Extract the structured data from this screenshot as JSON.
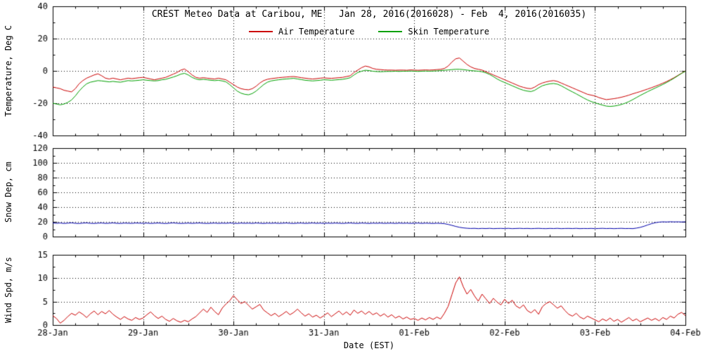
{
  "title": "CREST Meteo Data at Caribou, ME   Jan 28, 2016(2016028) - Feb  4, 2016(2016035)",
  "colors": {
    "background": "#ffffff",
    "axis": "#000000",
    "air_temperature": "#cc0000",
    "skin_temperature": "#00a000",
    "snow_depth": "#0000aa",
    "wind_speed": "#cc0000"
  },
  "legend": [
    {
      "label": "Air Temperature",
      "color": "#cc0000"
    },
    {
      "label": "Skin Temperature",
      "color": "#00a000"
    }
  ],
  "x_axis": {
    "label": "Date (EST)",
    "ticks": [
      "28-Jan",
      "29-Jan",
      "30-Jan",
      "31-Jan",
      "01-Feb",
      "02-Feb",
      "03-Feb",
      "04-Feb"
    ],
    "tick_hours": [
      0,
      24,
      48,
      72,
      96,
      120,
      144,
      168
    ],
    "hours_range": [
      0,
      168
    ],
    "minor_tick_hours": 6
  },
  "chart_data": [
    {
      "type": "line",
      "ylabel": "Temperature, Deg C",
      "ylim": [
        -40,
        40
      ],
      "yticks": [
        -40,
        -20,
        0,
        20,
        40
      ],
      "grid": true,
      "series": [
        {
          "name": "Air Temperature",
          "color": "#cc0000",
          "values": [
            -10,
            -10.5,
            -11,
            -12,
            -12.5,
            -13,
            -11,
            -8,
            -6,
            -4.5,
            -3.5,
            -2.5,
            -1.8,
            -3,
            -4.5,
            -5,
            -4.5,
            -5,
            -5.5,
            -5,
            -4.5,
            -4.8,
            -4.5,
            -4.2,
            -4,
            -4.5,
            -5,
            -5.5,
            -5,
            -4.5,
            -4,
            -3,
            -2,
            -1,
            0.5,
            1.2,
            -0.5,
            -2.5,
            -4,
            -4.5,
            -4.2,
            -4.5,
            -4.8,
            -5,
            -4.5,
            -5,
            -5.5,
            -7,
            -8.5,
            -10,
            -11,
            -11.5,
            -11.7,
            -11,
            -9.5,
            -7.5,
            -6,
            -5.2,
            -4.8,
            -4.5,
            -4.2,
            -4,
            -3.8,
            -3.6,
            -3.5,
            -3.8,
            -4.2,
            -4.5,
            -4.8,
            -5,
            -4.8,
            -4.5,
            -4.3,
            -4.5,
            -4.6,
            -4.4,
            -4.2,
            -4,
            -3.5,
            -3,
            -1,
            0.5,
            2,
            3,
            2.5,
            1.5,
            1,
            0.8,
            0.6,
            0.5,
            0.5,
            0.4,
            0.5,
            0.5,
            0.4,
            0.6,
            0.5,
            0.4,
            0.5,
            0.6,
            0.5,
            0.6,
            0.8,
            1,
            1.5,
            3,
            5.5,
            7.5,
            8,
            6,
            4,
            2.5,
            1.5,
            1,
            0.5,
            -0.5,
            -1.5,
            -2.5,
            -3.5,
            -4.5,
            -5.5,
            -6.5,
            -7.5,
            -8.5,
            -9.5,
            -10.2,
            -10.8,
            -11,
            -10,
            -8.5,
            -7.5,
            -6.8,
            -6.3,
            -6,
            -6.5,
            -7.5,
            -8.5,
            -9.5,
            -10.5,
            -11.5,
            -12.5,
            -13.5,
            -14.5,
            -15,
            -15.5,
            -16.5,
            -17.2,
            -17.8,
            -17.5,
            -17.2,
            -16.8,
            -16.3,
            -15.7,
            -15,
            -14.2,
            -13.5,
            -12.8,
            -12,
            -11.2,
            -10.4,
            -9.5,
            -8.6,
            -7.6,
            -6.6,
            -5.4,
            -4.2,
            -2.8,
            -1.4,
            0
          ]
        },
        {
          "name": "Skin Temperature",
          "color": "#00a000",
          "values": [
            -20,
            -20.5,
            -21,
            -20.5,
            -19.5,
            -18,
            -15.5,
            -12.5,
            -10,
            -8,
            -7,
            -6.5,
            -6,
            -6.2,
            -6.5,
            -6.8,
            -6.5,
            -6.8,
            -7,
            -6.5,
            -6,
            -6.2,
            -6,
            -5.8,
            -5.5,
            -5.8,
            -6,
            -6.2,
            -6,
            -5.5,
            -5.2,
            -4.5,
            -3.8,
            -3,
            -2,
            -1.5,
            -2.5,
            -4,
            -5,
            -5.5,
            -5.2,
            -5.5,
            -5.8,
            -6,
            -5.8,
            -6.2,
            -6.8,
            -8.5,
            -10.5,
            -12.5,
            -13.8,
            -14.5,
            -14.8,
            -14,
            -12.5,
            -10.5,
            -8.5,
            -7,
            -6.2,
            -5.8,
            -5.5,
            -5.2,
            -5,
            -4.8,
            -4.6,
            -5,
            -5.4,
            -5.8,
            -6,
            -6.2,
            -6,
            -5.8,
            -5.5,
            -5.6,
            -5.8,
            -5.6,
            -5.4,
            -5.2,
            -4.8,
            -4.2,
            -2.5,
            -1,
            -0.2,
            0.4,
            0.2,
            -0.2,
            -0.4,
            -0.5,
            -0.4,
            -0.3,
            -0.3,
            -0.2,
            -0.3,
            -0.2,
            -0.2,
            -0.1,
            -0.2,
            -0.3,
            -0.2,
            -0.1,
            -0.2,
            -0.1,
            0,
            0.2,
            0.4,
            0.6,
            0.8,
            1,
            1,
            0.8,
            0.5,
            0.2,
            0,
            -0.2,
            -0.5,
            -1.2,
            -2.2,
            -3.5,
            -5,
            -6.2,
            -7.2,
            -8.2,
            -9.2,
            -10.2,
            -11.2,
            -12,
            -12.5,
            -12.8,
            -12,
            -10.5,
            -9.2,
            -8.5,
            -8,
            -7.8,
            -8.2,
            -9.2,
            -10.5,
            -11.8,
            -13,
            -14.2,
            -15.5,
            -16.8,
            -18,
            -19,
            -19.8,
            -20.5,
            -21.2,
            -21.8,
            -22,
            -21.8,
            -21.4,
            -20.8,
            -20,
            -19,
            -17.8,
            -16.5,
            -15.2,
            -14,
            -12.8,
            -11.7,
            -10.6,
            -9.5,
            -8.4,
            -7.2,
            -5.9,
            -4.5,
            -3,
            -1.5,
            -0.2
          ]
        }
      ]
    },
    {
      "type": "line",
      "ylabel": "Snow Dep, cm",
      "ylim": [
        0,
        120
      ],
      "yticks": [
        0,
        20,
        40,
        60,
        80,
        100,
        120
      ],
      "grid": true,
      "series": [
        {
          "name": "Snow Depth",
          "color": "#0000aa",
          "values": [
            18.5,
            18,
            18.4,
            17.8,
            18.2,
            18.6,
            18,
            17.7,
            18.3,
            18.5,
            18,
            17.8,
            18.2,
            18.4,
            17.9,
            18.1,
            18.5,
            18,
            17.8,
            18.3,
            18.1,
            17.9,
            18.4,
            18.2,
            18,
            18.3,
            17.8,
            18.1,
            18.4,
            18,
            17.7,
            18.2,
            18.5,
            18.1,
            17.8,
            18,
            18.3,
            17.9,
            18.2,
            18.4,
            18,
            17.8,
            18.1,
            18.3,
            17.9,
            18.2,
            18,
            18.4,
            18.1,
            17.8,
            18.3,
            18,
            18.2,
            17.9,
            18.4,
            18.1,
            17.8,
            18.2,
            18,
            18.3,
            17.9,
            18.1,
            18.4,
            18,
            17.8,
            18.2,
            18.3,
            17.9,
            18.1,
            18.4,
            18,
            18.2,
            17.9,
            18.2,
            18,
            18.3,
            18.1,
            17.8,
            18.2,
            18.4,
            18,
            17.9,
            18.3,
            18.1,
            17.8,
            18.2,
            18,
            18.3,
            17.9,
            18.1,
            18.2,
            17.8,
            18.3,
            18,
            18.2,
            17.9,
            18.1,
            18.3,
            17.9,
            18.2,
            18,
            17.8,
            18.1,
            17.9,
            17.5,
            16.5,
            15.2,
            13.8,
            12.6,
            11.8,
            11.3,
            11,
            11.2,
            10.8,
            11.1,
            10.9,
            11.2,
            10.8,
            11,
            11.1,
            10.9,
            11.2,
            10.8,
            11,
            11.2,
            10.9,
            11.1,
            10.8,
            11,
            11.2,
            10.9,
            10.8,
            11.1,
            10.9,
            11.2,
            10.8,
            11,
            11.1,
            10.9,
            11.2,
            10.8,
            11,
            10.9,
            11.1,
            10.8,
            11,
            11.2,
            10.9,
            11.1,
            10.8,
            11,
            11.2,
            10.9,
            11,
            10.8,
            11.5,
            12.5,
            14,
            15.8,
            17.5,
            18.8,
            19.6,
            20,
            19.8,
            20.1,
            19.9,
            20,
            19.8,
            20
          ]
        }
      ]
    },
    {
      "type": "line",
      "ylabel": "Wind Spd, m/s",
      "ylim": [
        0,
        15
      ],
      "yticks": [
        0,
        5,
        10,
        15
      ],
      "grid": true,
      "series": [
        {
          "name": "Wind Speed",
          "color": "#cc0000",
          "values": [
            2,
            1.4,
            0.4,
            1,
            1.8,
            2.5,
            2.1,
            2.8,
            2.3,
            1.6,
            2.4,
            3,
            2.2,
            2.9,
            2.4,
            3.1,
            2.3,
            1.7,
            1.2,
            1.8,
            1.3,
            1,
            1.6,
            1.2,
            1.5,
            2.2,
            2.8,
            2,
            1.4,
            1.9,
            1.2,
            0.8,
            1.4,
            0.9,
            0.6,
            1,
            0.7,
            1.3,
            1.8,
            2.6,
            3.4,
            2.7,
            3.8,
            2.9,
            2.2,
            3.6,
            4.5,
            5.2,
            6.3,
            5.4,
            4.6,
            5,
            4.2,
            3.4,
            3.9,
            4.4,
            3.2,
            2.6,
            2,
            2.5,
            1.8,
            2.3,
            2.9,
            2.2,
            2.7,
            3.4,
            2.6,
            1.9,
            2.4,
            1.7,
            2.1,
            1.5,
            2,
            2.6,
            1.8,
            2.4,
            3,
            2.2,
            2.8,
            2.1,
            3.2,
            2.5,
            3,
            2.3,
            2.9,
            2.2,
            2.6,
            1.9,
            2.4,
            1.7,
            2.2,
            1.5,
            1.9,
            1.3,
            1.7,
            1.2,
            1.4,
            1,
            1.5,
            1.1,
            1.6,
            1.2,
            1.7,
            1.3,
            2.5,
            4,
            6.5,
            9,
            10.3,
            8.2,
            6.6,
            7.6,
            6.2,
            5.1,
            6.6,
            5.6,
            4.6,
            5.7,
            4.9,
            4.3,
            5.5,
            4.6,
            5.3,
            4.1,
            3.6,
            4.3,
            3.1,
            2.6,
            3.3,
            2.3,
            3.9,
            4.6,
            5,
            4.3,
            3.6,
            4.1,
            3.1,
            2.3,
            1.9,
            2.5,
            1.7,
            1.3,
            1.9,
            1.5,
            1.1,
            0.7,
            1.3,
            0.9,
            1.5,
            0.8,
            1.2,
            0.6,
            1.1,
            1.6,
            0.9,
            1.3,
            0.7,
            1.1,
            1.5,
            1,
            1.4,
            0.9,
            1.6,
            1.2,
            1.9,
            1.5,
            2.3,
            2.7,
            2
          ]
        }
      ]
    }
  ]
}
